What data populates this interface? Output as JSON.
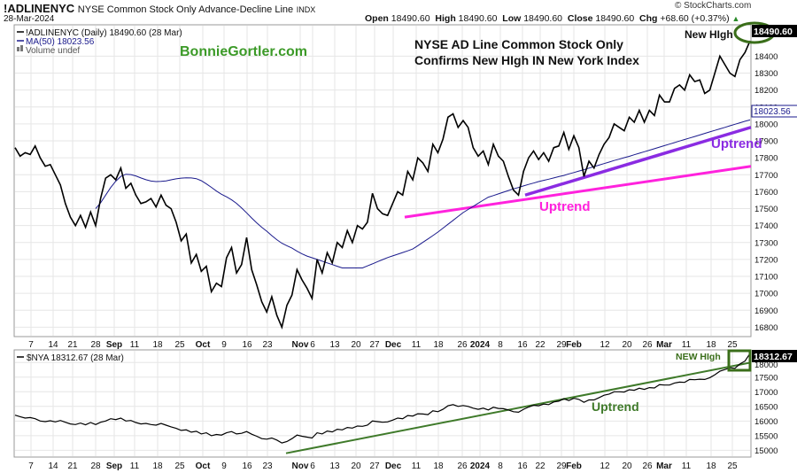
{
  "header": {
    "symbol": "!ADLINENYC",
    "description": "NYSE Common Stock Only Advance-Decline Line",
    "exchange": "INDX",
    "brand": "© StockCharts.com",
    "date": "28-Mar-2024",
    "ohlc": {
      "open_label": "Open",
      "open": "18490.60",
      "high_label": "High",
      "high": "18490.60",
      "low_label": "Low",
      "low": "18490.60",
      "close_label": "Close",
      "close": "18490.60",
      "chg_label": "Chg",
      "chg": "+68.60 (+0.37%)"
    }
  },
  "colors": {
    "price": "#000000",
    "ma": "#1a1a8c",
    "uptrend_magenta": "#ff22dd",
    "uptrend_purple": "#8a2be2",
    "uptrend_green": "#3f7a2a",
    "highlight_green": "#3a6e1a",
    "watermark_green": "#3c9a28",
    "grid": "#e6e6e6",
    "label_bg": "#000000"
  },
  "chart_data": [
    {
      "type": "line",
      "title": "NYSE AD Line Common Stock Only Confirms New HIgh IN New York Index",
      "watermark": "BonnieGortler.com",
      "legend": [
        "!ADLINENYC (Daily) 18490.60 (28 Mar)",
        "MA(50) 18023.56",
        "Volume undef"
      ],
      "annotations": [
        "New HIgh",
        "Uptrend",
        "Uptrend"
      ],
      "last_value_label": "18490.60",
      "ma_value_label": "18023.56",
      "ylim": [
        16750,
        18580
      ],
      "y_ticks": [
        16800,
        16900,
        17000,
        17100,
        17200,
        17300,
        17400,
        17500,
        17600,
        17700,
        17800,
        17900,
        18000,
        18100,
        18200,
        18300,
        18400
      ],
      "x_ticks": [
        "7",
        "14",
        "21",
        "28",
        "Sep",
        "11",
        "18",
        "25",
        "Oct",
        "9",
        "16",
        "23",
        "Nov",
        "6",
        "13",
        "20",
        "27",
        "Dec",
        "11",
        "18",
        "26",
        "2024",
        "8",
        "16",
        "22",
        "29",
        "Feb",
        "12",
        "20",
        "26",
        "Mar",
        "11",
        "18",
        "25"
      ],
      "series": [
        {
          "name": "!ADLINENYC",
          "values": [
            17860,
            17810,
            17830,
            17820,
            17870,
            17800,
            17750,
            17760,
            17700,
            17640,
            17530,
            17450,
            17400,
            17460,
            17390,
            17480,
            17400,
            17560,
            17680,
            17700,
            17670,
            17740,
            17620,
            17650,
            17580,
            17530,
            17540,
            17560,
            17510,
            17580,
            17520,
            17500,
            17420,
            17310,
            17350,
            17180,
            17230,
            17130,
            17160,
            17010,
            17060,
            17040,
            17210,
            17270,
            17120,
            17170,
            17330,
            17140,
            17050,
            16950,
            16890,
            16980,
            16870,
            16800,
            16930,
            16990,
            17140,
            17080,
            17030,
            16970,
            17200,
            17120,
            17240,
            17180,
            17300,
            17270,
            17370,
            17300,
            17400,
            17380,
            17420,
            17590,
            17500,
            17470,
            17460,
            17530,
            17600,
            17580,
            17720,
            17670,
            17800,
            17770,
            17720,
            17880,
            17830,
            17910,
            18040,
            18060,
            17980,
            18020,
            17980,
            17860,
            17810,
            17840,
            17760,
            17880,
            17810,
            17780,
            17690,
            17610,
            17580,
            17720,
            17800,
            17840,
            17790,
            17830,
            17780,
            17860,
            17870,
            17950,
            17850,
            17930,
            17860,
            17690,
            17780,
            17740,
            17820,
            17880,
            17920,
            18000,
            17980,
            17960,
            18040,
            18010,
            18080,
            18010,
            18080,
            18050,
            18170,
            18130,
            18130,
            18210,
            18230,
            18200,
            18290,
            18250,
            18260,
            18180,
            18200,
            18300,
            18400,
            18350,
            18300,
            18280,
            18380,
            18422,
            18490.6
          ]
        },
        {
          "name": "MA(50)",
          "values": [
            17500,
            17535,
            17580,
            17625,
            17662,
            17690,
            17703,
            17701,
            17693,
            17681,
            17671,
            17663,
            17660,
            17661,
            17664,
            17670,
            17676,
            17680,
            17682,
            17681,
            17677,
            17665,
            17646,
            17626,
            17604,
            17585,
            17570,
            17552,
            17531,
            17504,
            17475,
            17445,
            17416,
            17390,
            17367,
            17341,
            17317,
            17296,
            17281,
            17267,
            17249,
            17233,
            17220,
            17210,
            17200,
            17190,
            17180,
            17170,
            17160,
            17150,
            17150,
            17150,
            17150,
            17150,
            17162,
            17174,
            17187,
            17199,
            17211,
            17221,
            17231,
            17241,
            17251,
            17262,
            17281,
            17301,
            17321,
            17341,
            17362,
            17385,
            17408,
            17431,
            17454,
            17477,
            17495,
            17513,
            17532,
            17550,
            17568,
            17577,
            17587,
            17597,
            17607,
            17617,
            17625,
            17634,
            17643,
            17651,
            17660,
            17667,
            17674,
            17681,
            17689,
            17696,
            17705,
            17713,
            17722,
            17730,
            17739,
            17748,
            17757,
            17766,
            17775,
            17784,
            17792,
            17801,
            17809,
            17818,
            17827,
            17836,
            17845,
            17854,
            17863,
            17872,
            17881,
            17890,
            17899,
            17908,
            17917,
            17926,
            17935,
            17944,
            17953,
            17962,
            17971,
            17980,
            17989,
            17998,
            18007,
            18016,
            18023.56
          ]
        }
      ]
    },
    {
      "type": "line",
      "legend": [
        "$NYA 18312.67 (28 Mar)"
      ],
      "annotations": [
        "NEW HIgh",
        "Uptrend"
      ],
      "last_value_label": "18312.67",
      "ylim": [
        14800,
        18400
      ],
      "y_ticks": [
        15000,
        15500,
        16000,
        16500,
        17000,
        17500,
        18000
      ],
      "x_ticks": [
        "7",
        "14",
        "21",
        "28",
        "Sep",
        "11",
        "18",
        "25",
        "Oct",
        "9",
        "16",
        "23",
        "Nov",
        "6",
        "13",
        "20",
        "27",
        "Dec",
        "11",
        "18",
        "26",
        "2024",
        "8",
        "16",
        "22",
        "29",
        "Feb",
        "12",
        "20",
        "26",
        "Mar",
        "11",
        "18",
        "25"
      ],
      "series": [
        {
          "name": "$NYA",
          "values": [
            16200,
            16150,
            16100,
            16120,
            16080,
            16000,
            15980,
            16010,
            15970,
            16020,
            15960,
            15900,
            15880,
            15930,
            15870,
            15950,
            15880,
            15960,
            16000,
            16080,
            16050,
            16100,
            16000,
            16020,
            15950,
            15900,
            15920,
            15880,
            15860,
            15920,
            15860,
            15800,
            15750,
            15680,
            15700,
            15620,
            15650,
            15560,
            15600,
            15500,
            15540,
            15520,
            15600,
            15640,
            15560,
            15580,
            15640,
            15550,
            15480,
            15400,
            15380,
            15420,
            15350,
            15250,
            15300,
            15400,
            15520,
            15480,
            15450,
            15420,
            15600,
            15560,
            15660,
            15630,
            15720,
            15700,
            15780,
            15760,
            15830,
            15820,
            15860,
            16000,
            15980,
            15960,
            15970,
            16030,
            16100,
            16080,
            16190,
            16170,
            16250,
            16240,
            16220,
            16350,
            16320,
            16400,
            16520,
            16560,
            16500,
            16530,
            16500,
            16440,
            16400,
            16440,
            16380,
            16470,
            16430,
            16420,
            16380,
            16320,
            16300,
            16400,
            16480,
            16540,
            16520,
            16580,
            16560,
            16650,
            16680,
            16760,
            16700,
            16780,
            16740,
            16640,
            16720,
            16720,
            16800,
            16880,
            16920,
            17000,
            17000,
            16990,
            17070,
            17050,
            17120,
            17080,
            17140,
            17130,
            17240,
            17230,
            17230,
            17300,
            17330,
            17320,
            17420,
            17410,
            17430,
            17420,
            17480,
            17580,
            17700,
            17760,
            17820,
            17800,
            17950,
            18050,
            18312.67
          ]
        }
      ]
    }
  ]
}
